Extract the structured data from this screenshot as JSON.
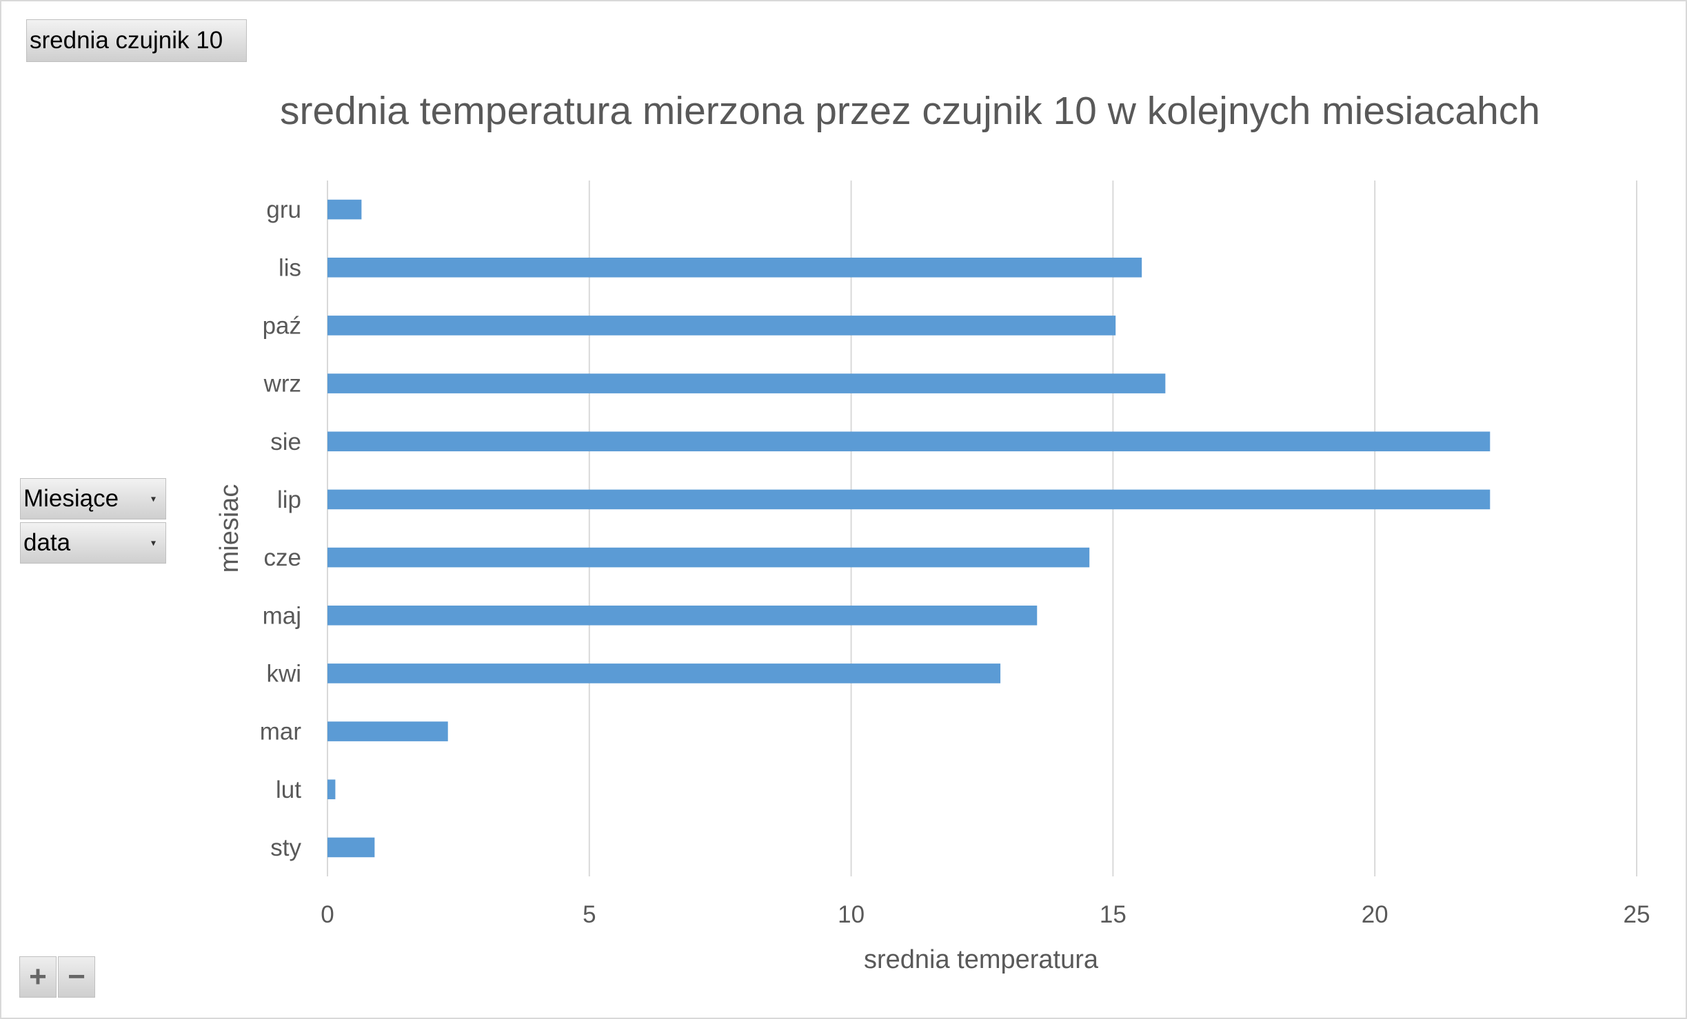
{
  "pivot": {
    "value_field": "srednia czujnik 10",
    "row_fields": [
      "Miesiące",
      "data"
    ],
    "expand_symbol": "+",
    "collapse_symbol": "−"
  },
  "colors": {
    "bar": "#5b9bd5",
    "grid": "#d9d9d9",
    "text": "#595959"
  },
  "chart_data": {
    "type": "bar",
    "orientation": "horizontal",
    "title": "srednia temperatura mierzona przez czujnik 10 w kolejnych miesiacahch",
    "xlabel": "srednia temperatura",
    "ylabel": "miesiac",
    "xlim": [
      0,
      25
    ],
    "xticks": [
      0,
      5,
      10,
      15,
      20,
      25
    ],
    "grid": true,
    "legend": "none",
    "categories": [
      "sty",
      "lut",
      "mar",
      "kwi",
      "maj",
      "cze",
      "lip",
      "sie",
      "wrz",
      "paź",
      "lis",
      "gru"
    ],
    "series": [
      {
        "values": [
          0.9,
          0.15,
          2.3,
          12.85,
          13.55,
          14.55,
          22.2,
          22.2,
          16.0,
          15.05,
          15.55,
          0.65
        ]
      }
    ]
  }
}
